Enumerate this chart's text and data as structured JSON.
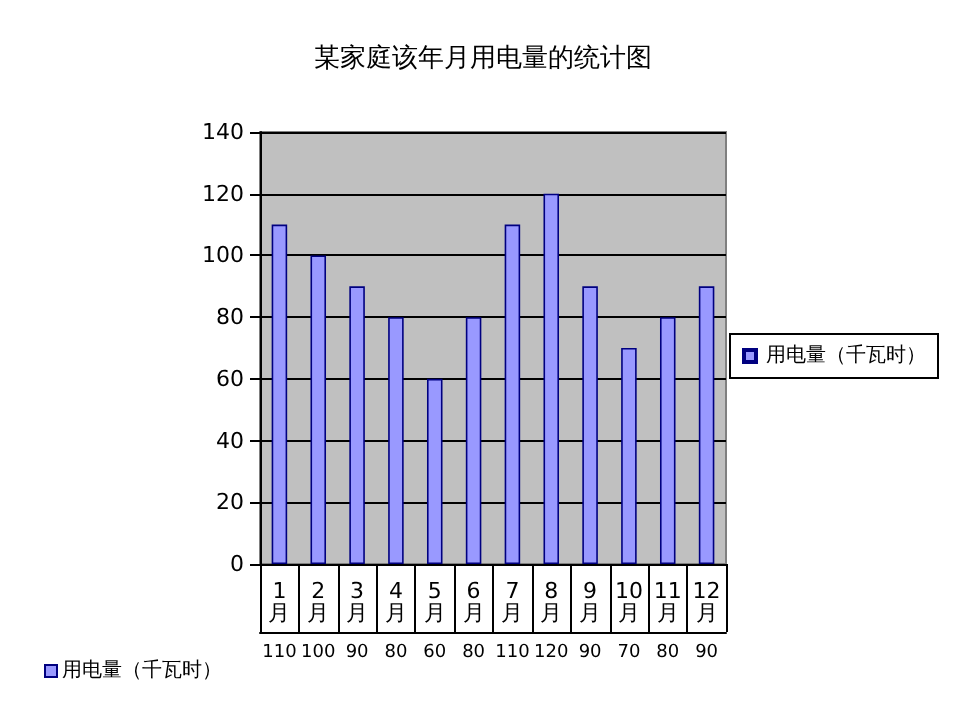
{
  "chart_data": {
    "type": "bar",
    "title": "某家庭该年月用电量的统计图",
    "categories": [
      "1月",
      "2月",
      "3月",
      "4月",
      "5月",
      "6月",
      "7月",
      "8月",
      "9月",
      "10月",
      "11月",
      "12月"
    ],
    "series": [
      {
        "name": "用电量（千瓦时）",
        "color": "#9999ff",
        "values": [
          110,
          100,
          90,
          80,
          60,
          80,
          110,
          120,
          90,
          70,
          80,
          90
        ]
      }
    ],
    "ylim": [
      0,
      140
    ],
    "yticks": [
      0,
      20,
      40,
      60,
      80,
      100,
      120,
      140
    ],
    "grid": "y",
    "legend": "right",
    "data_labels": true
  }
}
